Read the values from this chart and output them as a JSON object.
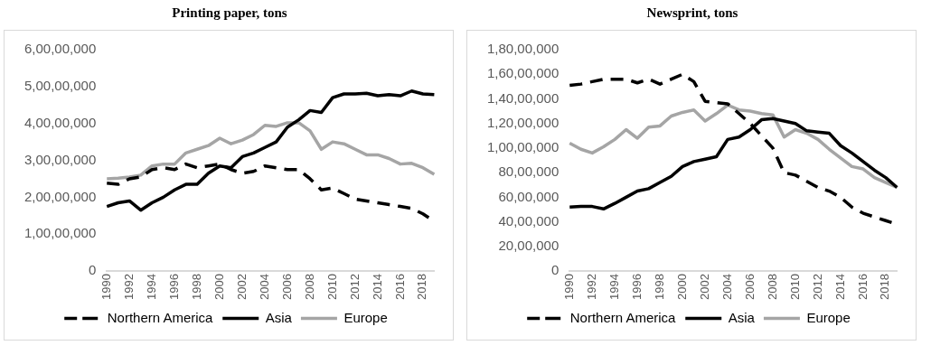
{
  "chart_data": [
    {
      "type": "line",
      "title": "Printing paper, tons",
      "categories": [
        "1990",
        null,
        "1992",
        null,
        "1994",
        null,
        "1996",
        null,
        "1998",
        null,
        "2000",
        null,
        "2002",
        null,
        "2004",
        null,
        "2006",
        null,
        "2008",
        null,
        "2010",
        null,
        "2012",
        null,
        "2014",
        null,
        "2016",
        null,
        "2018",
        null
      ],
      "series": [
        {
          "name": "Northern America",
          "color": "#000000",
          "line_style": "dashed",
          "values": [
            23800000,
            23500000,
            25000000,
            25500000,
            27500000,
            28000000,
            27500000,
            29000000,
            28000000,
            28500000,
            29000000,
            27500000,
            26500000,
            27000000,
            28500000,
            28000000,
            27500000,
            27500000,
            25000000,
            22000000,
            22500000,
            21000000,
            19500000,
            19000000,
            18500000,
            18000000,
            17500000,
            17000000,
            15500000,
            13500000
          ]
        },
        {
          "name": "Asia",
          "color": "#000000",
          "line_style": "solid",
          "values": [
            17500000,
            18500000,
            19000000,
            16500000,
            18500000,
            20000000,
            22000000,
            23500000,
            23500000,
            26500000,
            28500000,
            28000000,
            31000000,
            32000000,
            33500000,
            35000000,
            39000000,
            41000000,
            43500000,
            43000000,
            47000000,
            48000000,
            48000000,
            48200000,
            47500000,
            47800000,
            47500000,
            48800000,
            48000000,
            47800000
          ]
        },
        {
          "name": "Europe",
          "color": "#a5a5a5",
          "line_style": "solid",
          "values": [
            25000000,
            25200000,
            25500000,
            26000000,
            28500000,
            29000000,
            29000000,
            32000000,
            33000000,
            34000000,
            36000000,
            34500000,
            35500000,
            37000000,
            39500000,
            39200000,
            40200000,
            40200000,
            38000000,
            33000000,
            35000000,
            34500000,
            33000000,
            31500000,
            31500000,
            30500000,
            29000000,
            29200000,
            28000000,
            26200000
          ]
        }
      ],
      "ylim": [
        0,
        60000000
      ],
      "yticks": [
        0,
        {
          "value": 10000000,
          "label": "1,00,00,000"
        },
        {
          "value": 20000000,
          "label": "2,00,00,000"
        },
        {
          "value": 30000000,
          "label": "3,00,00,000"
        },
        {
          "value": 40000000,
          "label": "4,00,00,000"
        },
        {
          "value": 50000000,
          "label": "5,00,00,000"
        },
        {
          "value": 60000000,
          "label": "6,00,00,000"
        }
      ],
      "legend": "bottom",
      "grid": false,
      "marker": "none"
    },
    {
      "type": "line",
      "title": "Newsprint, tons",
      "categories": [
        "1990",
        null,
        "1992",
        null,
        "1994",
        null,
        "1996",
        null,
        "1998",
        null,
        "2000",
        null,
        "2002",
        null,
        "2004",
        null,
        "2006",
        null,
        "2008",
        null,
        "2010",
        null,
        "2012",
        null,
        "2014",
        null,
        "2016",
        null,
        "2018",
        null
      ],
      "series": [
        {
          "name": "Northern America",
          "color": "#000000",
          "line_style": "dashed",
          "values": [
            15100000,
            15200000,
            15400000,
            15600000,
            15600000,
            15600000,
            15300000,
            15600000,
            15200000,
            15600000,
            16000000,
            15400000,
            13800000,
            13700000,
            13600000,
            12800000,
            12000000,
            11000000,
            10000000,
            8000000,
            7800000,
            7300000,
            6800000,
            6500000,
            6000000,
            5200000,
            4700000,
            4400000,
            4100000,
            3800000
          ]
        },
        {
          "name": "Asia",
          "color": "#000000",
          "line_style": "solid",
          "values": [
            5200000,
            5250000,
            5250000,
            5050000,
            5500000,
            6000000,
            6500000,
            6700000,
            7200000,
            7700000,
            8500000,
            8900000,
            9100000,
            9300000,
            10700000,
            10900000,
            11500000,
            12300000,
            12400000,
            12200000,
            12000000,
            11400000,
            11300000,
            11200000,
            10200000,
            9600000,
            8900000,
            8200000,
            7600000,
            6800000
          ]
        },
        {
          "name": "Europe",
          "color": "#a5a5a5",
          "line_style": "solid",
          "values": [
            10400000,
            9900000,
            9600000,
            10100000,
            10700000,
            11500000,
            10800000,
            11700000,
            11800000,
            12600000,
            12900000,
            13100000,
            12200000,
            12800000,
            13500000,
            13100000,
            13000000,
            12800000,
            12700000,
            10900000,
            11500000,
            11200000,
            10700000,
            9900000,
            9200000,
            8500000,
            8300000,
            7600000,
            7200000,
            6800000
          ]
        }
      ],
      "ylim": [
        0,
        18000000
      ],
      "yticks": [
        0,
        {
          "value": 2000000,
          "label": "20,00,000"
        },
        {
          "value": 4000000,
          "label": "40,00,000"
        },
        {
          "value": 6000000,
          "label": "60,00,000"
        },
        {
          "value": 8000000,
          "label": "80,00,000"
        },
        {
          "value": 10000000,
          "label": "1,00,00,000"
        },
        {
          "value": 12000000,
          "label": "1,20,00,000"
        },
        {
          "value": 14000000,
          "label": "1,40,00,000"
        },
        {
          "value": 16000000,
          "label": "1,60,00,000"
        },
        {
          "value": 18000000,
          "label": "1,80,00,000"
        }
      ],
      "legend": "bottom",
      "grid": false,
      "marker": "none"
    }
  ]
}
